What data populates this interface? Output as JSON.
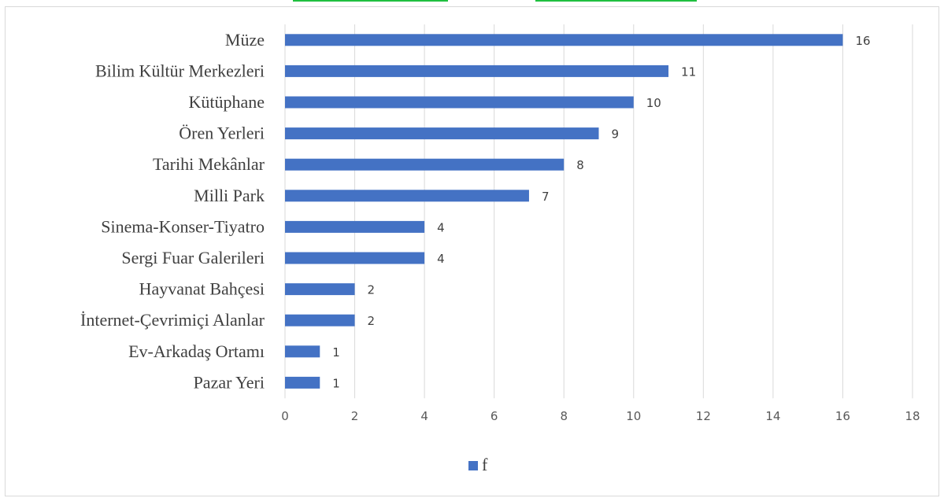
{
  "chart_data": {
    "type": "bar",
    "orientation": "horizontal",
    "categories": [
      "Müze",
      "Bilim Kültür Merkezleri",
      "Kütüphane",
      "Ören Yerleri",
      "Tarihi Mekânlar",
      "Milli Park",
      "Sinema-Konser-Tiyatro",
      "Sergi Fuar Galerileri",
      "Hayvanat Bahçesi",
      "İnternet-Çevrimiçi Alanlar",
      "Ev-Arkadaş Ortamı",
      "Pazar Yeri"
    ],
    "series": [
      {
        "name": "f",
        "values": [
          16,
          11,
          10,
          9,
          8,
          7,
          4,
          4,
          2,
          2,
          1,
          1
        ]
      }
    ],
    "xlim": [
      0,
      18
    ],
    "x_ticks": [
      "0",
      "2",
      "4",
      "6",
      "8",
      "10",
      "12",
      "14",
      "16",
      "18"
    ],
    "grid": "vertical",
    "legend_position": "bottom",
    "data_labels": true,
    "bar_color": "#4472c4",
    "grid_color": "#d9d9d9"
  }
}
